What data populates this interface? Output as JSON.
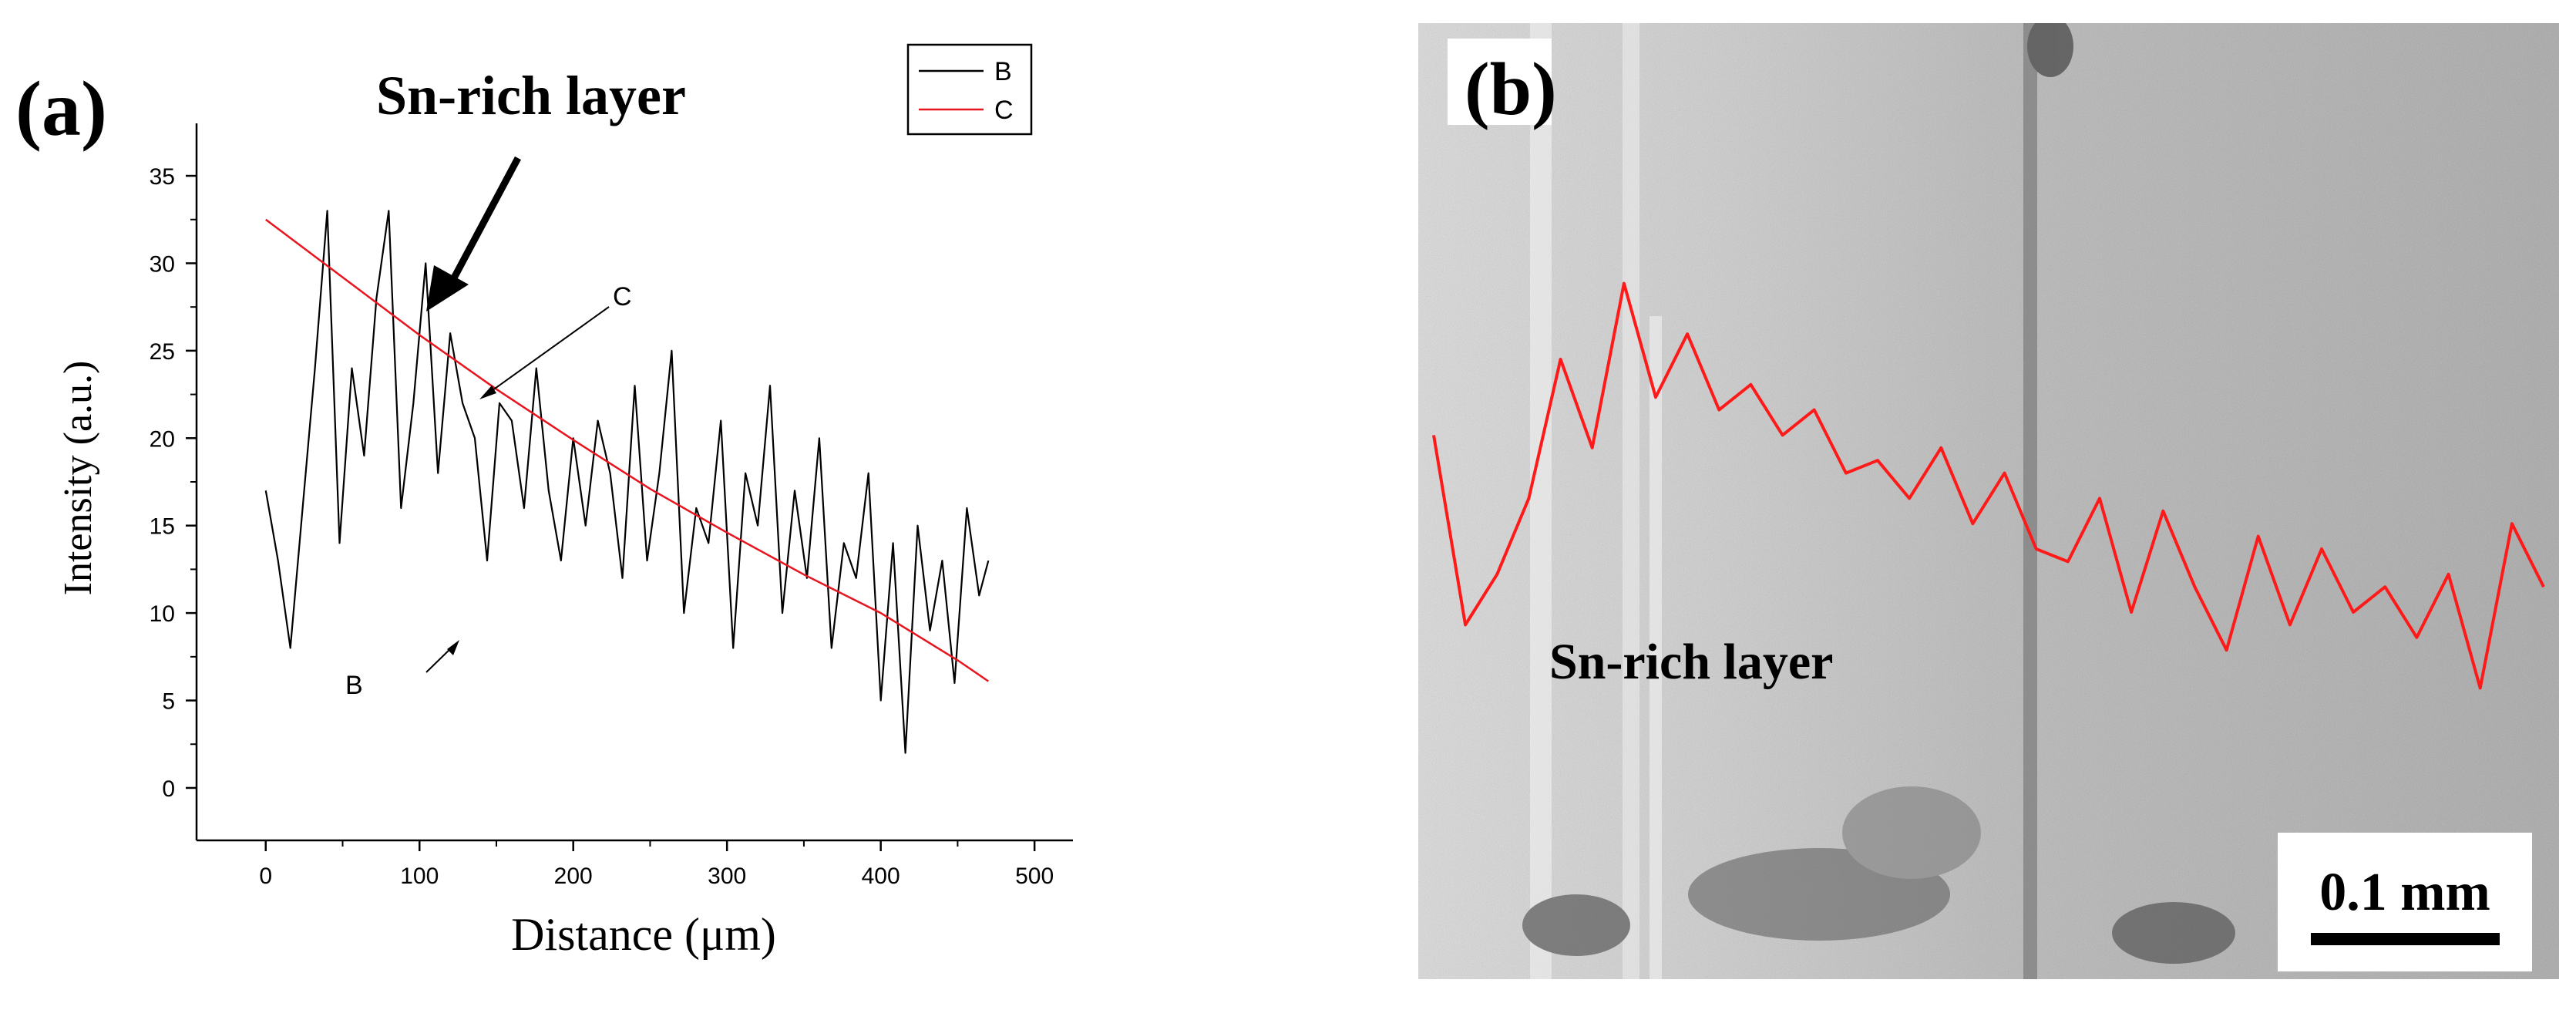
{
  "panel_a": {
    "panel_label": "(a)",
    "annotation": "Sn-rich layer",
    "callout_c": "C",
    "callout_b": "B",
    "colors": {
      "B": "#000000",
      "C": "#e8141e"
    }
  },
  "panel_b": {
    "panel_label": "(b)",
    "annotation": "Sn-rich layer",
    "scale_bar": "0.1 mm",
    "colors": {
      "trace": "#ff1a1a"
    }
  },
  "chart_data": [
    {
      "type": "line",
      "title": "",
      "xlabel": "Distance (μm)",
      "ylabel": "Intensity (a.u.)",
      "xlim": [
        -45,
        525
      ],
      "ylim": [
        -3,
        38
      ],
      "x_ticks": [
        0,
        100,
        200,
        300,
        400,
        500
      ],
      "y_ticks": [
        0,
        5,
        10,
        15,
        20,
        25,
        30,
        35
      ],
      "legend": {
        "placement": "top-right",
        "entries": [
          "B",
          "C"
        ]
      },
      "grid": false,
      "series": [
        {
          "name": "B",
          "x": [
            0,
            8,
            16,
            24,
            32,
            40,
            48,
            56,
            64,
            72,
            80,
            88,
            96,
            104,
            112,
            120,
            128,
            136,
            144,
            152,
            160,
            168,
            176,
            184,
            192,
            200,
            208,
            216,
            224,
            232,
            240,
            248,
            256,
            264,
            272,
            280,
            288,
            296,
            304,
            312,
            320,
            328,
            336,
            344,
            352,
            360,
            368,
            376,
            384,
            392,
            400,
            408,
            416,
            424,
            432,
            440,
            448,
            456,
            464,
            470
          ],
          "values": [
            17,
            13,
            8,
            16,
            24,
            33,
            14,
            24,
            19,
            28,
            33,
            16,
            22,
            30,
            18,
            26,
            22,
            20,
            13,
            22,
            21,
            16,
            24,
            17,
            13,
            20,
            15,
            21,
            18,
            12,
            23,
            13,
            18,
            25,
            10,
            16,
            14,
            21,
            8,
            18,
            15,
            23,
            10,
            17,
            12,
            20,
            8,
            14,
            12,
            18,
            5,
            14,
            2,
            15,
            9,
            13,
            6,
            16,
            11,
            13
          ]
        },
        {
          "name": "C",
          "x": [
            0,
            50,
            100,
            150,
            200,
            250,
            300,
            350,
            400,
            450,
            470
          ],
          "values": [
            32.5,
            29.2,
            25.9,
            22.8,
            19.9,
            17.1,
            14.6,
            12.2,
            10.0,
            7.3,
            6.1
          ]
        }
      ]
    },
    {
      "type": "line",
      "title": "",
      "xlabel": "",
      "ylabel": "",
      "series": [
        {
          "x": [
            0,
            10,
            20,
            30,
            40,
            50,
            60,
            70,
            80,
            90,
            100,
            110,
            120,
            130,
            140,
            150,
            160,
            170,
            180,
            190,
            200,
            210,
            220,
            230,
            240,
            250,
            260,
            270,
            280,
            290,
            300,
            310,
            320,
            330,
            340,
            350
          ],
          "values": [
            58,
            28,
            36,
            48,
            70,
            56,
            82,
            64,
            74,
            62,
            66,
            58,
            62,
            52,
            54,
            48,
            56,
            44,
            52,
            40,
            38,
            48,
            30,
            46,
            34,
            24,
            42,
            28,
            40,
            30,
            34,
            26,
            36,
            18,
            44,
            34
          ]
        }
      ]
    }
  ]
}
